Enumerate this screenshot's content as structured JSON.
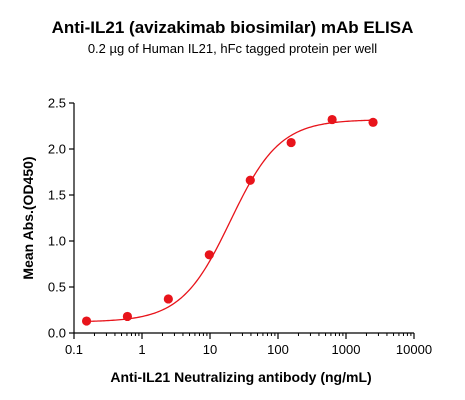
{
  "chart_data": {
    "type": "scatter",
    "title": "Anti-IL21 (avizakimab biosimilar) mAb ELISA",
    "subtitle": "0.2 µg of Human IL21, hFc tagged protein per well",
    "xlabel": "Anti-IL21 Neutralizing antibody (ng/mL)",
    "ylabel": "Mean Abs.(OD450)",
    "xscale": "log",
    "xlim": [
      0.1,
      10000
    ],
    "ylim": [
      0,
      2.5
    ],
    "xticks": [
      "0.1",
      "1",
      "10",
      "100",
      "1000",
      "10000"
    ],
    "yticks": [
      "0.0",
      "0.5",
      "1.0",
      "1.5",
      "2.0",
      "2.5"
    ],
    "grid": false,
    "color": "#e8141b",
    "series": [
      {
        "x": [
          0.153,
          0.61,
          2.44,
          9.77,
          39.1,
          156,
          625,
          2500
        ],
        "y": [
          0.13,
          0.18,
          0.37,
          0.85,
          1.66,
          2.07,
          2.32,
          2.29
        ],
        "fit": "4PL"
      }
    ]
  }
}
